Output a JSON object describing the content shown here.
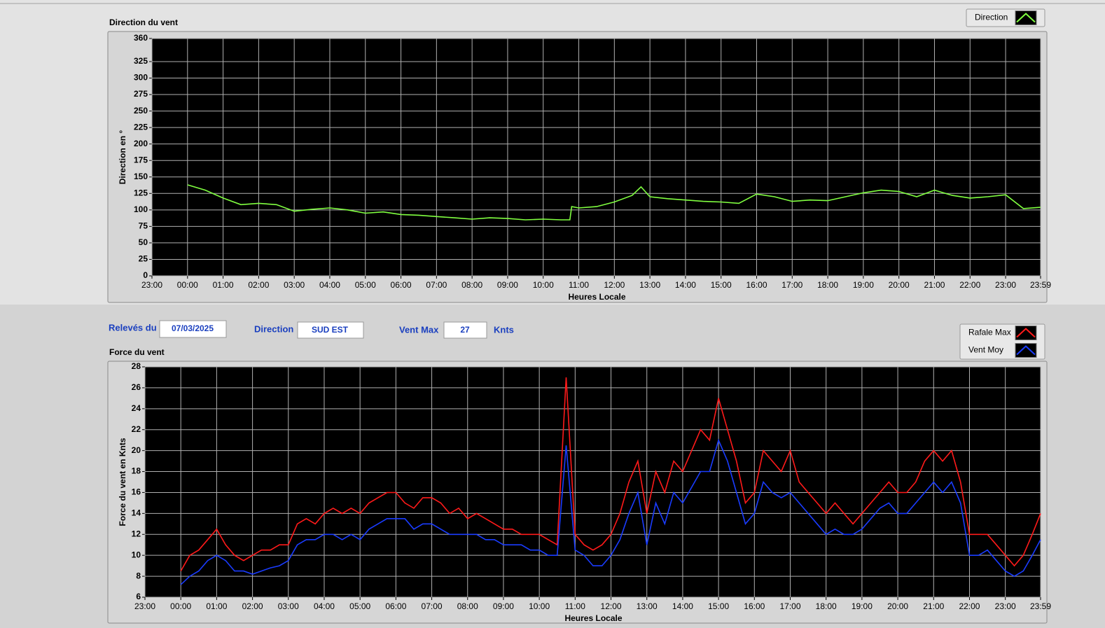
{
  "chart_data": [
    {
      "type": "line",
      "title": "Direction du vent",
      "x_label": "Heures Locale",
      "y_label": "Direction en °",
      "xlim": [
        -1,
        23.983
      ],
      "xticks": [
        {
          "value": -1,
          "label": "23:00"
        },
        {
          "value": 0,
          "label": "00:00"
        },
        {
          "value": 1,
          "label": "01:00"
        },
        {
          "value": 2,
          "label": "02:00"
        },
        {
          "value": 3,
          "label": "03:00"
        },
        {
          "value": 4,
          "label": "04:00"
        },
        {
          "value": 5,
          "label": "05:00"
        },
        {
          "value": 6,
          "label": "06:00"
        },
        {
          "value": 7,
          "label": "07:00"
        },
        {
          "value": 8,
          "label": "08:00"
        },
        {
          "value": 9,
          "label": "09:00"
        },
        {
          "value": 10,
          "label": "10:00"
        },
        {
          "value": 11,
          "label": "11:00"
        },
        {
          "value": 12,
          "label": "12:00"
        },
        {
          "value": 13,
          "label": "13:00"
        },
        {
          "value": 14,
          "label": "14:00"
        },
        {
          "value": 15,
          "label": "15:00"
        },
        {
          "value": 16,
          "label": "16:00"
        },
        {
          "value": 17,
          "label": "17:00"
        },
        {
          "value": 18,
          "label": "18:00"
        },
        {
          "value": 19,
          "label": "19:00"
        },
        {
          "value": 20,
          "label": "20:00"
        },
        {
          "value": 21,
          "label": "21:00"
        },
        {
          "value": 22,
          "label": "22:00"
        },
        {
          "value": 23,
          "label": "23:00"
        },
        {
          "value": 23.983,
          "label": "23:59"
        }
      ],
      "ylim": [
        0,
        360
      ],
      "yticks": [
        0,
        25,
        50,
        75,
        100,
        125,
        150,
        175,
        200,
        225,
        250,
        275,
        300,
        325,
        360
      ],
      "grid": true,
      "legend": "top-right",
      "x": [
        0,
        0.5,
        1,
        1.5,
        2,
        2.5,
        3,
        3.5,
        4,
        4.5,
        5,
        5.5,
        6,
        6.5,
        7,
        7.5,
        8,
        8.5,
        9,
        9.5,
        10,
        10.5,
        10.75,
        10.8,
        11,
        11.5,
        12,
        12.5,
        12.75,
        13,
        13.5,
        14,
        14.5,
        15,
        15.5,
        16,
        16.5,
        17,
        17.5,
        18,
        18.5,
        19,
        19.5,
        20,
        20.5,
        21,
        21.5,
        22,
        22.5,
        23,
        23.5,
        23.983
      ],
      "series": [
        {
          "name": "Direction",
          "color": "#80ff40",
          "values": [
            138,
            130,
            118,
            108,
            110,
            108,
            98,
            101,
            103,
            100,
            95,
            97,
            93,
            92,
            90,
            88,
            86,
            88,
            87,
            85,
            86,
            85,
            85,
            105,
            103,
            105,
            112,
            122,
            135,
            120,
            117,
            115,
            113,
            112,
            110,
            124,
            120,
            113,
            115,
            114,
            120,
            126,
            130,
            128,
            120,
            130,
            122,
            118,
            120,
            123,
            102,
            104
          ]
        }
      ]
    },
    {
      "type": "line",
      "title": "Force du vent",
      "x_label": "Heures Locale",
      "y_label": "Force du vent en Knts",
      "xlim": [
        -1,
        23.983
      ],
      "xticks": [
        {
          "value": -1,
          "label": "23:00"
        },
        {
          "value": 0,
          "label": "00:00"
        },
        {
          "value": 1,
          "label": "01:00"
        },
        {
          "value": 2,
          "label": "02:00"
        },
        {
          "value": 3,
          "label": "03:00"
        },
        {
          "value": 4,
          "label": "04:00"
        },
        {
          "value": 5,
          "label": "05:00"
        },
        {
          "value": 6,
          "label": "06:00"
        },
        {
          "value": 7,
          "label": "07:00"
        },
        {
          "value": 8,
          "label": "08:00"
        },
        {
          "value": 9,
          "label": "09:00"
        },
        {
          "value": 10,
          "label": "10:00"
        },
        {
          "value": 11,
          "label": "11:00"
        },
        {
          "value": 12,
          "label": "12:00"
        },
        {
          "value": 13,
          "label": "13:00"
        },
        {
          "value": 14,
          "label": "14:00"
        },
        {
          "value": 15,
          "label": "15:00"
        },
        {
          "value": 16,
          "label": "16:00"
        },
        {
          "value": 17,
          "label": "17:00"
        },
        {
          "value": 18,
          "label": "18:00"
        },
        {
          "value": 19,
          "label": "19:00"
        },
        {
          "value": 20,
          "label": "20:00"
        },
        {
          "value": 21,
          "label": "21:00"
        },
        {
          "value": 22,
          "label": "22:00"
        },
        {
          "value": 23,
          "label": "23:00"
        },
        {
          "value": 23.983,
          "label": "23:59"
        }
      ],
      "ylim": [
        6,
        28
      ],
      "yticks": [
        6,
        8,
        10,
        12,
        14,
        16,
        18,
        20,
        22,
        24,
        26,
        28
      ],
      "grid": true,
      "legend": "top-right",
      "x": [
        0,
        0.25,
        0.5,
        0.75,
        1,
        1.25,
        1.5,
        1.75,
        2,
        2.25,
        2.5,
        2.75,
        3,
        3.25,
        3.5,
        3.75,
        4,
        4.25,
        4.5,
        4.75,
        5,
        5.25,
        5.5,
        5.75,
        6,
        6.25,
        6.5,
        6.75,
        7,
        7.25,
        7.5,
        7.75,
        8,
        8.25,
        8.5,
        8.75,
        9,
        9.25,
        9.5,
        9.75,
        10,
        10.25,
        10.5,
        10.75,
        11,
        11.25,
        11.5,
        11.75,
        12,
        12.25,
        12.5,
        12.75,
        13,
        13.25,
        13.5,
        13.75,
        14,
        14.25,
        14.5,
        14.75,
        15,
        15.25,
        15.5,
        15.75,
        16,
        16.25,
        16.5,
        16.75,
        17,
        17.25,
        17.5,
        17.75,
        18,
        18.25,
        18.5,
        18.75,
        19,
        19.25,
        19.5,
        19.75,
        20,
        20.25,
        20.5,
        20.75,
        21,
        21.25,
        21.5,
        21.75,
        22,
        22.25,
        22.5,
        22.75,
        23,
        23.25,
        23.5,
        23.75,
        23.983
      ],
      "series": [
        {
          "name": "Rafale Max",
          "color": "#ff1a1a",
          "values": [
            8.5,
            10,
            10.5,
            11.5,
            12.5,
            11,
            10,
            9.5,
            10,
            10.5,
            10.5,
            11,
            11,
            13,
            13.5,
            13,
            14,
            14.5,
            14,
            14.5,
            14,
            15,
            15.5,
            16,
            16,
            15,
            14.5,
            15.5,
            15.5,
            15,
            14,
            14.5,
            13.5,
            14,
            13.5,
            13,
            12.5,
            12.5,
            12,
            12,
            12,
            11.5,
            11,
            27,
            12,
            11,
            10.5,
            11,
            12,
            14,
            17,
            19,
            14,
            18,
            16,
            19,
            18,
            20,
            22,
            21,
            25,
            22,
            19,
            15,
            16,
            20,
            19,
            18,
            20,
            17,
            16,
            15,
            14,
            15,
            14,
            13,
            14,
            15,
            16,
            17,
            16,
            16,
            17,
            19,
            20,
            19,
            20,
            17,
            12,
            12,
            12,
            11,
            10,
            9,
            10,
            12,
            14
          ]
        },
        {
          "name": "Vent Moy",
          "color": "#1a3cff",
          "values": [
            7.2,
            8,
            8.5,
            9.5,
            10,
            9.5,
            8.5,
            8.5,
            8.2,
            8.5,
            8.8,
            9,
            9.5,
            11,
            11.5,
            11.5,
            12,
            12,
            11.5,
            12,
            11.5,
            12.5,
            13,
            13.5,
            13.5,
            13.5,
            12.5,
            13,
            13,
            12.5,
            12,
            12,
            12,
            12,
            11.5,
            11.5,
            11,
            11,
            11,
            10.5,
            10.5,
            10,
            10,
            20.5,
            10.5,
            10,
            9,
            9,
            10,
            11.5,
            14,
            16,
            11,
            15,
            13,
            16,
            15,
            16.5,
            18,
            18,
            21,
            19,
            16,
            13,
            14,
            17,
            16,
            15.5,
            16,
            15,
            14,
            13,
            12,
            12.5,
            12,
            12,
            12.5,
            13.5,
            14.5,
            15,
            14,
            14,
            15,
            16,
            17,
            16,
            17,
            15,
            10,
            10,
            10.5,
            9.5,
            8.5,
            8,
            8.5,
            10,
            11.5
          ]
        }
      ]
    }
  ],
  "fields": [
    {
      "label": "Relevés du",
      "value": "07/03/2025"
    },
    {
      "label": "Direction",
      "value": "SUD EST"
    },
    {
      "label": "Vent Max",
      "value": 27,
      "unit": "Knts"
    }
  ]
}
